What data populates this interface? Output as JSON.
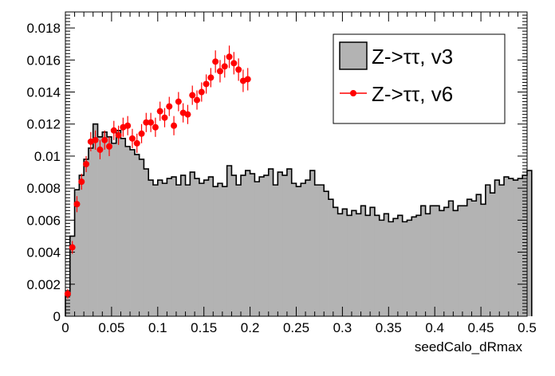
{
  "chart_data": {
    "type": "histogram",
    "title": "",
    "xlabel": "seedCalo_dRmax",
    "ylabel": "",
    "xlim": [
      0,
      0.5
    ],
    "ylim": [
      0,
      0.019
    ],
    "x_ticks": [
      0,
      0.05,
      0.1,
      0.15,
      0.2,
      0.25,
      0.3,
      0.35,
      0.4,
      0.45,
      0.5
    ],
    "x_tick_labels": [
      "0",
      "0.05",
      "0.1",
      "0.15",
      "0.2",
      "0.25",
      "0.3",
      "0.35",
      "0.4",
      "0.45",
      "0.5"
    ],
    "y_ticks": [
      0,
      0.002,
      0.004,
      0.006,
      0.008,
      0.01,
      0.012,
      0.014,
      0.016,
      0.018
    ],
    "y_tick_labels": [
      "0",
      "0.002",
      "0.004",
      "0.006",
      "0.008",
      "0.01",
      "0.012",
      "0.014",
      "0.016",
      "0.018"
    ],
    "legend": {
      "position": "top-right"
    },
    "series": [
      {
        "name": "Z->ττ, v3",
        "style": "filled-histogram",
        "color": "#b3b3b3",
        "bin_width": 0.005,
        "bin_start": 0,
        "values": [
          0.0013,
          0.005,
          0.0079,
          0.0088,
          0.0098,
          0.0105,
          0.012,
          0.0112,
          0.0115,
          0.0112,
          0.0108,
          0.0116,
          0.0111,
          0.0106,
          0.0104,
          0.0101,
          0.0098,
          0.0092,
          0.0085,
          0.0082,
          0.0085,
          0.0083,
          0.0086,
          0.0087,
          0.0082,
          0.0088,
          0.0082,
          0.009,
          0.0086,
          0.0083,
          0.0085,
          0.0087,
          0.0081,
          0.0083,
          0.0081,
          0.0094,
          0.0088,
          0.0082,
          0.0088,
          0.0091,
          0.0089,
          0.0084,
          0.0087,
          0.0088,
          0.0092,
          0.0082,
          0.009,
          0.0088,
          0.0092,
          0.0083,
          0.0081,
          0.0083,
          0.0085,
          0.0091,
          0.0082,
          0.0082,
          0.0078,
          0.0073,
          0.0068,
          0.0064,
          0.0067,
          0.0063,
          0.0066,
          0.0064,
          0.0069,
          0.0063,
          0.0068,
          0.0063,
          0.006,
          0.0064,
          0.0059,
          0.0061,
          0.0063,
          0.0059,
          0.006,
          0.0062,
          0.0063,
          0.0069,
          0.0064,
          0.0069,
          0.0069,
          0.0066,
          0.0068,
          0.0072,
          0.0066,
          0.0069,
          0.0069,
          0.0073,
          0.0072,
          0.0076,
          0.007,
          0.0082,
          0.0077,
          0.0085,
          0.0082,
          0.0087,
          0.0086,
          0.0085,
          0.0086,
          0.0088,
          0.0091
        ]
      },
      {
        "name": "Z->ττ, v6",
        "style": "points-with-error-bars",
        "color": "#ff0000",
        "points": [
          {
            "x": 0.0025,
            "y": 0.0014,
            "err": 0.0003
          },
          {
            "x": 0.0075,
            "y": 0.0043,
            "err": 0.0004
          },
          {
            "x": 0.0125,
            "y": 0.007,
            "err": 0.0005
          },
          {
            "x": 0.0175,
            "y": 0.0084,
            "err": 0.0005
          },
          {
            "x": 0.0225,
            "y": 0.0095,
            "err": 0.0005
          },
          {
            "x": 0.0275,
            "y": 0.0109,
            "err": 0.0006
          },
          {
            "x": 0.0325,
            "y": 0.011,
            "err": 0.0006
          },
          {
            "x": 0.0375,
            "y": 0.0104,
            "err": 0.0006
          },
          {
            "x": 0.0425,
            "y": 0.011,
            "err": 0.0006
          },
          {
            "x": 0.0475,
            "y": 0.0106,
            "err": 0.0006
          },
          {
            "x": 0.0525,
            "y": 0.0116,
            "err": 0.0006
          },
          {
            "x": 0.0575,
            "y": 0.0113,
            "err": 0.0006
          },
          {
            "x": 0.0625,
            "y": 0.0118,
            "err": 0.0006
          },
          {
            "x": 0.0675,
            "y": 0.0119,
            "err": 0.0006
          },
          {
            "x": 0.0725,
            "y": 0.0111,
            "err": 0.0006
          },
          {
            "x": 0.0775,
            "y": 0.0108,
            "err": 0.0006
          },
          {
            "x": 0.0825,
            "y": 0.0114,
            "err": 0.0006
          },
          {
            "x": 0.0875,
            "y": 0.0121,
            "err": 0.0006
          },
          {
            "x": 0.0925,
            "y": 0.0121,
            "err": 0.0006
          },
          {
            "x": 0.0975,
            "y": 0.0118,
            "err": 0.0006
          },
          {
            "x": 0.1025,
            "y": 0.0128,
            "err": 0.0006
          },
          {
            "x": 0.1075,
            "y": 0.0124,
            "err": 0.0006
          },
          {
            "x": 0.1125,
            "y": 0.0131,
            "err": 0.0006
          },
          {
            "x": 0.1175,
            "y": 0.0119,
            "err": 0.0006
          },
          {
            "x": 0.1225,
            "y": 0.0134,
            "err": 0.0006
          },
          {
            "x": 0.1275,
            "y": 0.0127,
            "err": 0.0006
          },
          {
            "x": 0.1325,
            "y": 0.0126,
            "err": 0.0006
          },
          {
            "x": 0.1375,
            "y": 0.0138,
            "err": 0.0006
          },
          {
            "x": 0.1425,
            "y": 0.0135,
            "err": 0.0006
          },
          {
            "x": 0.1475,
            "y": 0.014,
            "err": 0.0006
          },
          {
            "x": 0.1525,
            "y": 0.0145,
            "err": 0.0006
          },
          {
            "x": 0.1575,
            "y": 0.0149,
            "err": 0.0006
          },
          {
            "x": 0.1625,
            "y": 0.0159,
            "err": 0.0007
          },
          {
            "x": 0.1675,
            "y": 0.0153,
            "err": 0.0007
          },
          {
            "x": 0.1725,
            "y": 0.0156,
            "err": 0.0007
          },
          {
            "x": 0.1775,
            "y": 0.0162,
            "err": 0.0007
          },
          {
            "x": 0.1825,
            "y": 0.0158,
            "err": 0.0007
          },
          {
            "x": 0.1875,
            "y": 0.0154,
            "err": 0.0007
          },
          {
            "x": 0.1925,
            "y": 0.0147,
            "err": 0.0007
          },
          {
            "x": 0.1975,
            "y": 0.0148,
            "err": 0.0007
          }
        ]
      }
    ]
  }
}
